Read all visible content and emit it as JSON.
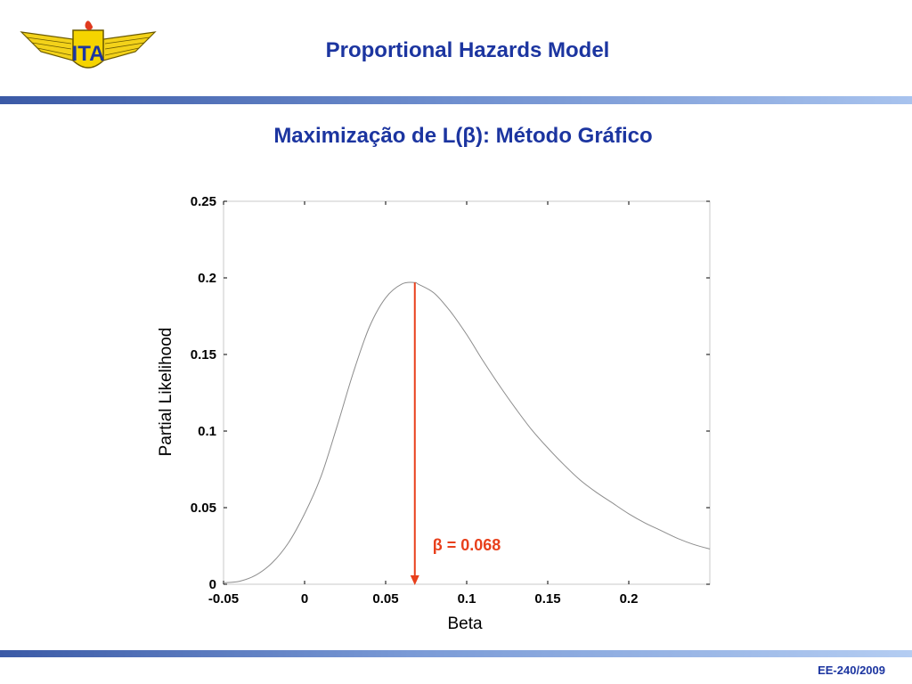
{
  "header": {
    "title": "Proportional Hazards Model",
    "subtitle": "Maximização de L(β): Método Gráfico"
  },
  "footer": {
    "text": "EE-240/2009"
  },
  "logo": {
    "text": "ITA"
  },
  "colors": {
    "title": "#1c35a0",
    "curve": "#8c8c8c",
    "annotation": "#e8401c",
    "band": "#3b5aa6"
  },
  "chart_data": {
    "type": "line",
    "xlabel": "Beta",
    "ylabel": "Partial Likelihood",
    "xlim": [
      -0.05,
      0.25
    ],
    "ylim": [
      0,
      0.25
    ],
    "x_ticks": [
      -0.05,
      0,
      0.05,
      0.1,
      0.15,
      0.2
    ],
    "x_tick_labels": [
      "-0.05",
      "0",
      "0.05",
      "0.1",
      "0.15",
      "0.2"
    ],
    "y_ticks": [
      0,
      0.05,
      0.1,
      0.15,
      0.2,
      0.25
    ],
    "y_tick_labels": [
      "0",
      "0.05",
      "0.1",
      "0.15",
      "0.2",
      "0.25"
    ],
    "grid": false,
    "series": [
      {
        "x": [
          -0.05,
          -0.04,
          -0.03,
          -0.02,
          -0.01,
          0,
          0.01,
          0.02,
          0.03,
          0.04,
          0.05,
          0.06,
          0.068,
          0.07,
          0.08,
          0.09,
          0.1,
          0.11,
          0.12,
          0.13,
          0.14,
          0.15,
          0.16,
          0.17,
          0.18,
          0.19,
          0.2,
          0.21,
          0.22,
          0.23,
          0.24,
          0.25
        ],
        "y": [
          0.001,
          0.002,
          0.006,
          0.014,
          0.027,
          0.046,
          0.07,
          0.103,
          0.138,
          0.168,
          0.187,
          0.196,
          0.197,
          0.196,
          0.19,
          0.178,
          0.163,
          0.146,
          0.13,
          0.115,
          0.101,
          0.089,
          0.078,
          0.068,
          0.06,
          0.053,
          0.046,
          0.04,
          0.035,
          0.03,
          0.026,
          0.023
        ]
      }
    ],
    "annotation": {
      "label": "β = 0.068",
      "x": 0.068,
      "y": 0.197
    }
  }
}
